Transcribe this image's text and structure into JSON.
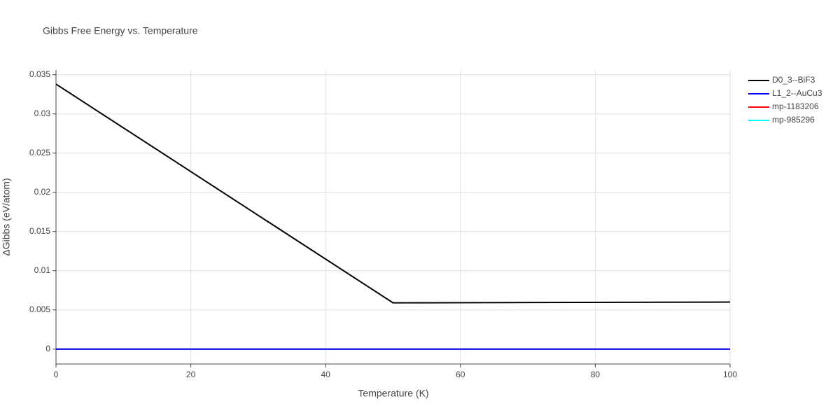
{
  "chart_data": {
    "type": "line",
    "title": "Gibbs Free Energy vs. Temperature",
    "x_label": "Temperature (K)",
    "y_label": "ΔGibbs (eV/atom)",
    "x": [
      0,
      50,
      100
    ],
    "series": [
      {
        "name": "D0_3--BiF3",
        "color": "#000000",
        "values": [
          0.0338,
          0.0059,
          0.006
        ]
      },
      {
        "name": "L1_2--AuCu3",
        "color": "#0000ff",
        "values": [
          0,
          0,
          0
        ]
      },
      {
        "name": "mp-1183206",
        "color": "#ff0000",
        "values": [
          0,
          0,
          0
        ]
      },
      {
        "name": "mp-985296",
        "color": "#00ffff",
        "values": [
          0,
          0,
          0
        ]
      }
    ],
    "xlim": [
      0,
      100
    ],
    "xticks": [
      0,
      20,
      40,
      60,
      80,
      100
    ],
    "ylim": [
      -0.0019,
      0.0356
    ],
    "yticks": [
      0,
      0.005,
      0.01,
      0.015,
      0.02,
      0.025,
      0.03,
      0.035
    ],
    "grid": true,
    "legend": "outside-right"
  }
}
